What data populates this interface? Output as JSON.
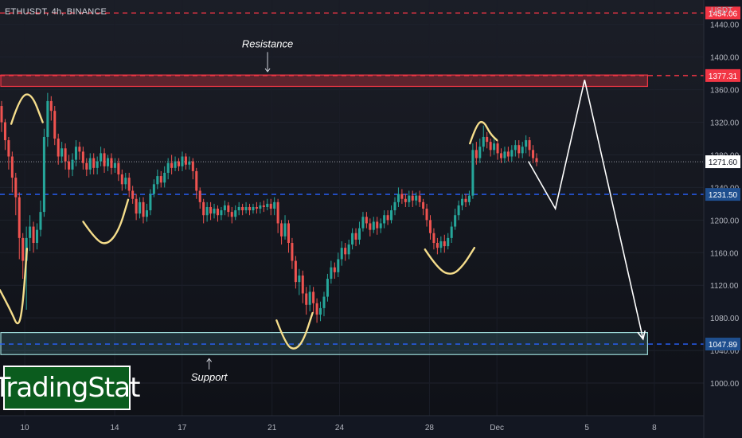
{
  "symbol_label": "ETHUSDT, 4h, BINANCE",
  "currency": "USDT",
  "brand": {
    "text": "TradingStat"
  },
  "colors": {
    "background": "#131722",
    "bull": "#26a69a",
    "bear": "#ef5350",
    "resistance": "#f23645",
    "support": "#2962ff",
    "support_zone": "#9bd7d6",
    "projection": "#ffffff",
    "pattern_marks": "#f5dd8b",
    "brand_bg": "#0b5c1e"
  },
  "chart_data": {
    "type": "candlestick",
    "title": "ETHUSDT, 4h, BINANCE",
    "ylim": [
      960,
      1470
    ],
    "y_ticks": [
      1000,
      1040,
      1080,
      1120,
      1160,
      1200,
      1240,
      1280,
      1320,
      1360,
      1400,
      1440
    ],
    "x_ticks": [
      {
        "label": "10",
        "day": 10
      },
      {
        "label": "14",
        "day": 14
      },
      {
        "label": "17",
        "day": 17
      },
      {
        "label": "21",
        "day": 21
      },
      {
        "label": "24",
        "day": 24
      },
      {
        "label": "28",
        "day": 28
      },
      {
        "label": "Dec",
        "day": 31
      },
      {
        "label": "5",
        "day": 35
      },
      {
        "label": "8",
        "day": 38
      }
    ],
    "xlim_days": [
      8.9,
      40.2
    ],
    "price_levels": [
      {
        "name": "top",
        "value": 1454.06,
        "label": "1454.06",
        "color": "#f23645",
        "dash": true
      },
      {
        "name": "resistance",
        "value": 1377.31,
        "label": "1377.31",
        "color": "#f23645",
        "dash": true
      },
      {
        "name": "last",
        "value": 1271.6,
        "label": "1271.60",
        "color": "#9598a1",
        "dash": false
      },
      {
        "name": "middle",
        "value": 1231.5,
        "label": "1231.50",
        "color": "#2962ff",
        "dash": true
      },
      {
        "name": "support",
        "value": 1047.89,
        "label": "1047.89",
        "color": "#2962ff",
        "dash": true
      }
    ],
    "zones": [
      {
        "name": "resistance-zone",
        "price_low": 1364,
        "price_high": 1378,
        "day_end": 37.7,
        "color": "#f23645"
      },
      {
        "name": "support-zone",
        "price_low": 1035,
        "price_high": 1062,
        "day_end": 37.7,
        "color": "#9bd7d6"
      }
    ],
    "annotations": [
      {
        "name": "resistance-annotation",
        "text": "Resistance",
        "day": 20.8,
        "price": 1412,
        "arrow_to": 1382
      },
      {
        "name": "support-annotation",
        "text": "Support",
        "day": 18.2,
        "price": 1003,
        "arrow_to": 1030
      }
    ],
    "projection_path": [
      {
        "day": 32.4,
        "price": 1272
      },
      {
        "day": 33.6,
        "price": 1214
      },
      {
        "day": 34.9,
        "price": 1372
      },
      {
        "day": 37.5,
        "price": 1054
      }
    ],
    "pattern_marks": [
      {
        "name": "top-mark-left",
        "points": [
          [
            9.4,
            1318
          ],
          [
            9.8,
            1352
          ],
          [
            10.3,
            1356
          ],
          [
            10.8,
            1320
          ]
        ]
      },
      {
        "name": "bottom-mark-left",
        "points": [
          [
            8.9,
            1114
          ],
          [
            9.4,
            1088
          ],
          [
            9.7,
            1068
          ],
          [
            9.9,
            1090
          ],
          [
            10.1,
            1165
          ]
        ]
      },
      {
        "name": "bottom-mark-2",
        "points": [
          [
            12.6,
            1198
          ],
          [
            13.2,
            1174
          ],
          [
            13.7,
            1170
          ],
          [
            14.2,
            1188
          ],
          [
            14.6,
            1225
          ]
        ]
      },
      {
        "name": "bottom-mark-3",
        "points": [
          [
            21.2,
            1077
          ],
          [
            21.6,
            1048
          ],
          [
            22.0,
            1040
          ],
          [
            22.4,
            1052
          ],
          [
            22.8,
            1086
          ]
        ]
      },
      {
        "name": "bottom-mark-4",
        "points": [
          [
            27.8,
            1164
          ],
          [
            28.4,
            1139
          ],
          [
            29.0,
            1132
          ],
          [
            29.5,
            1144
          ],
          [
            30.0,
            1166
          ]
        ]
      },
      {
        "name": "top-mark-right",
        "points": [
          [
            29.8,
            1294
          ],
          [
            30.1,
            1318
          ],
          [
            30.4,
            1322
          ],
          [
            30.7,
            1306
          ],
          [
            31.0,
            1298
          ]
        ]
      }
    ],
    "candles": [
      [
        1340,
        1320,
        1346,
        1308
      ],
      [
        1320,
        1298,
        1324,
        1286
      ],
      [
        1298,
        1278,
        1302,
        1262
      ],
      [
        1278,
        1252,
        1284,
        1234
      ],
      [
        1252,
        1228,
        1258,
        1206
      ],
      [
        1228,
        1178,
        1234,
        1152
      ],
      [
        1178,
        1150,
        1184,
        1128
      ],
      [
        1150,
        1178,
        1192,
        1090
      ],
      [
        1178,
        1192,
        1206,
        1162
      ],
      [
        1192,
        1172,
        1198,
        1160
      ],
      [
        1172,
        1188,
        1196,
        1164
      ],
      [
        1188,
        1210,
        1224,
        1180
      ],
      [
        1210,
        1302,
        1312,
        1204
      ],
      [
        1302,
        1346,
        1356,
        1290
      ],
      [
        1346,
        1334,
        1352,
        1322
      ],
      [
        1334,
        1300,
        1340,
        1292
      ],
      [
        1300,
        1278,
        1306,
        1268
      ],
      [
        1278,
        1288,
        1296,
        1270
      ],
      [
        1288,
        1272,
        1294,
        1262
      ],
      [
        1272,
        1262,
        1280,
        1252
      ],
      [
        1262,
        1274,
        1282,
        1254
      ],
      [
        1274,
        1290,
        1298,
        1266
      ],
      [
        1290,
        1284,
        1296,
        1274
      ],
      [
        1284,
        1270,
        1290,
        1262
      ],
      [
        1270,
        1262,
        1276,
        1254
      ],
      [
        1262,
        1276,
        1282,
        1256
      ],
      [
        1276,
        1264,
        1282,
        1256
      ],
      [
        1264,
        1272,
        1278,
        1256
      ],
      [
        1272,
        1282,
        1290,
        1266
      ],
      [
        1282,
        1266,
        1288,
        1258
      ],
      [
        1266,
        1276,
        1280,
        1260
      ],
      [
        1276,
        1264,
        1282,
        1256
      ],
      [
        1264,
        1270,
        1276,
        1258
      ],
      [
        1270,
        1256,
        1276,
        1248
      ],
      [
        1256,
        1244,
        1262,
        1236
      ],
      [
        1244,
        1252,
        1258,
        1238
      ],
      [
        1252,
        1236,
        1258,
        1228
      ],
      [
        1236,
        1226,
        1242,
        1220
      ],
      [
        1226,
        1208,
        1232,
        1200
      ],
      [
        1208,
        1222,
        1228,
        1202
      ],
      [
        1222,
        1204,
        1228,
        1196
      ],
      [
        1204,
        1212,
        1220,
        1198
      ],
      [
        1212,
        1232,
        1238,
        1206
      ],
      [
        1232,
        1244,
        1250,
        1228
      ],
      [
        1244,
        1254,
        1262,
        1238
      ],
      [
        1254,
        1246,
        1260,
        1240
      ],
      [
        1246,
        1258,
        1266,
        1240
      ],
      [
        1258,
        1270,
        1276,
        1250
      ],
      [
        1270,
        1264,
        1280,
        1256
      ],
      [
        1264,
        1272,
        1278,
        1260
      ],
      [
        1272,
        1266,
        1276,
        1260
      ],
      [
        1266,
        1278,
        1284,
        1260
      ],
      [
        1278,
        1268,
        1282,
        1262
      ],
      [
        1268,
        1272,
        1278,
        1262
      ],
      [
        1272,
        1260,
        1276,
        1250
      ],
      [
        1260,
        1236,
        1264,
        1226
      ],
      [
        1236,
        1222,
        1240,
        1214
      ],
      [
        1222,
        1206,
        1226,
        1196
      ],
      [
        1206,
        1216,
        1222,
        1198
      ],
      [
        1216,
        1208,
        1222,
        1200
      ],
      [
        1208,
        1214,
        1220,
        1202
      ],
      [
        1214,
        1206,
        1218,
        1198
      ],
      [
        1206,
        1212,
        1216,
        1200
      ],
      [
        1212,
        1218,
        1224,
        1206
      ],
      [
        1218,
        1210,
        1222,
        1204
      ],
      [
        1210,
        1204,
        1216,
        1196
      ],
      [
        1204,
        1212,
        1218,
        1200
      ],
      [
        1212,
        1216,
        1222,
        1206
      ],
      [
        1216,
        1212,
        1220,
        1206
      ],
      [
        1212,
        1216,
        1222,
        1208
      ],
      [
        1216,
        1212,
        1220,
        1206
      ],
      [
        1212,
        1216,
        1220,
        1208
      ],
      [
        1216,
        1214,
        1222,
        1208
      ],
      [
        1214,
        1218,
        1222,
        1208
      ],
      [
        1218,
        1216,
        1224,
        1210
      ],
      [
        1216,
        1220,
        1226,
        1212
      ],
      [
        1220,
        1214,
        1226,
        1206
      ],
      [
        1214,
        1222,
        1228,
        1206
      ],
      [
        1222,
        1196,
        1226,
        1184
      ],
      [
        1196,
        1180,
        1200,
        1170
      ],
      [
        1180,
        1196,
        1206,
        1176
      ],
      [
        1196,
        1172,
        1200,
        1160
      ],
      [
        1172,
        1150,
        1178,
        1140
      ],
      [
        1150,
        1124,
        1156,
        1116
      ],
      [
        1124,
        1132,
        1140,
        1108
      ],
      [
        1132,
        1110,
        1138,
        1098
      ],
      [
        1110,
        1096,
        1118,
        1084
      ],
      [
        1096,
        1112,
        1120,
        1088
      ],
      [
        1112,
        1098,
        1118,
        1086
      ],
      [
        1098,
        1084,
        1104,
        1074
      ],
      [
        1084,
        1092,
        1100,
        1076
      ],
      [
        1092,
        1106,
        1112,
        1082
      ],
      [
        1106,
        1128,
        1134,
        1100
      ],
      [
        1128,
        1142,
        1150,
        1122
      ],
      [
        1142,
        1136,
        1148,
        1128
      ],
      [
        1136,
        1152,
        1160,
        1130
      ],
      [
        1152,
        1166,
        1174,
        1144
      ],
      [
        1166,
        1158,
        1172,
        1150
      ],
      [
        1158,
        1170,
        1176,
        1152
      ],
      [
        1170,
        1184,
        1190,
        1164
      ],
      [
        1184,
        1176,
        1190,
        1168
      ],
      [
        1176,
        1190,
        1198,
        1170
      ],
      [
        1190,
        1204,
        1210,
        1186
      ],
      [
        1204,
        1196,
        1210,
        1190
      ],
      [
        1196,
        1188,
        1202,
        1180
      ],
      [
        1188,
        1198,
        1204,
        1184
      ],
      [
        1198,
        1190,
        1204,
        1182
      ],
      [
        1190,
        1196,
        1202,
        1184
      ],
      [
        1196,
        1206,
        1212,
        1190
      ],
      [
        1206,
        1200,
        1212,
        1194
      ],
      [
        1200,
        1212,
        1218,
        1196
      ],
      [
        1212,
        1222,
        1228,
        1206
      ],
      [
        1222,
        1232,
        1240,
        1216
      ],
      [
        1232,
        1226,
        1238,
        1220
      ],
      [
        1226,
        1222,
        1232,
        1216
      ],
      [
        1222,
        1230,
        1236,
        1216
      ],
      [
        1230,
        1224,
        1236,
        1216
      ],
      [
        1224,
        1230,
        1234,
        1218
      ],
      [
        1230,
        1222,
        1236,
        1216
      ],
      [
        1222,
        1214,
        1226,
        1206
      ],
      [
        1214,
        1200,
        1220,
        1192
      ],
      [
        1200,
        1184,
        1206,
        1176
      ],
      [
        1184,
        1172,
        1190,
        1164
      ],
      [
        1172,
        1166,
        1178,
        1158
      ],
      [
        1166,
        1174,
        1180,
        1160
      ],
      [
        1174,
        1168,
        1182,
        1160
      ],
      [
        1168,
        1178,
        1184,
        1164
      ],
      [
        1178,
        1192,
        1198,
        1172
      ],
      [
        1192,
        1206,
        1214,
        1188
      ],
      [
        1206,
        1218,
        1224,
        1200
      ],
      [
        1218,
        1226,
        1232,
        1212
      ],
      [
        1226,
        1222,
        1232,
        1216
      ],
      [
        1222,
        1230,
        1236,
        1218
      ],
      [
        1230,
        1286,
        1294,
        1226
      ],
      [
        1286,
        1276,
        1296,
        1268
      ],
      [
        1276,
        1290,
        1300,
        1270
      ],
      [
        1290,
        1302,
        1316,
        1284
      ],
      [
        1302,
        1296,
        1308,
        1288
      ],
      [
        1296,
        1286,
        1300,
        1278
      ],
      [
        1286,
        1294,
        1300,
        1280
      ],
      [
        1294,
        1282,
        1298,
        1274
      ],
      [
        1282,
        1276,
        1288,
        1270
      ],
      [
        1276,
        1284,
        1290,
        1270
      ],
      [
        1284,
        1278,
        1290,
        1272
      ],
      [
        1278,
        1286,
        1292,
        1272
      ],
      [
        1286,
        1292,
        1298,
        1278
      ],
      [
        1292,
        1282,
        1298,
        1276
      ],
      [
        1282,
        1290,
        1296,
        1276
      ],
      [
        1290,
        1298,
        1304,
        1282
      ],
      [
        1298,
        1286,
        1302,
        1278
      ],
      [
        1286,
        1276,
        1292,
        1270
      ],
      [
        1276,
        1271.6,
        1282,
        1266
      ]
    ]
  }
}
